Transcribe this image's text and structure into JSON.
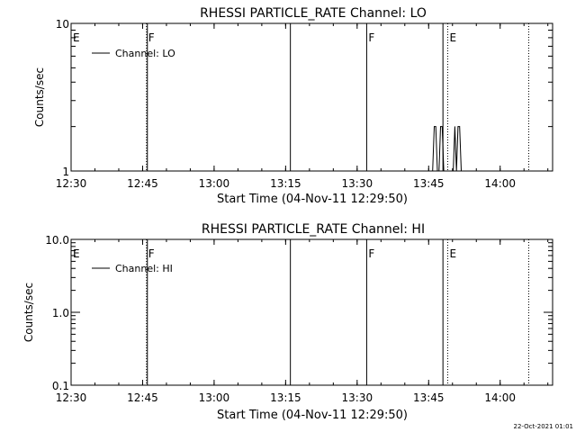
{
  "chart_data": [
    {
      "type": "line",
      "title": "RHESSI PARTICLE_RATE Channel: LO",
      "xlabel": "Start Time (04-Nov-11 12:29:50)",
      "ylabel": "Counts/sec",
      "yscale": "log",
      "ylim": [
        1,
        10
      ],
      "yticks": [
        "1",
        "10"
      ],
      "xlim": [
        "12:30",
        "14:11"
      ],
      "xticks": [
        "12:30",
        "12:45",
        "13:00",
        "13:15",
        "13:30",
        "13:45",
        "14:00"
      ],
      "grid": false,
      "legend_position": "top-left",
      "legend": "Channel: LO",
      "flags": [
        {
          "time": "12:30",
          "label": "E",
          "style": "solid"
        },
        {
          "time": "12:46",
          "label": "F",
          "style": "dotted"
        },
        {
          "time": "12:46",
          "label": "",
          "style": "solid"
        },
        {
          "time": "13:16",
          "label": "",
          "style": "solid"
        },
        {
          "time": "13:32",
          "label": "F",
          "style": "solid"
        },
        {
          "time": "13:48",
          "label": "",
          "style": "solid"
        },
        {
          "time": "13:49",
          "label": "E",
          "style": "dotted"
        },
        {
          "time": "14:06",
          "label": "",
          "style": "dotted"
        }
      ],
      "series": [
        {
          "name": "Channel: LO",
          "x": [
            "13:45:30",
            "13:45:50",
            "13:46:10",
            "13:46:30",
            "13:46:50",
            "13:47:10",
            "13:47:30",
            "13:47:50",
            "13:48:10",
            "13:48:30",
            "13:48:50",
            "13:49:10",
            "13:49:30",
            "13:49:50",
            "13:50:10",
            "13:50:30",
            "13:50:50",
            "13:51:10",
            "13:51:30",
            "13:51:50",
            "13:52:10"
          ],
          "values": [
            1,
            1,
            2,
            2,
            1,
            1,
            2,
            2,
            1,
            1,
            1,
            1,
            1,
            1,
            1,
            2,
            1,
            2,
            2,
            1,
            1
          ]
        }
      ]
    },
    {
      "type": "line",
      "title": "RHESSI PARTICLE_RATE Channel: HI",
      "xlabel": "Start Time (04-Nov-11 12:29:50)",
      "ylabel": "Counts/sec",
      "yscale": "log",
      "ylim": [
        0.1,
        10
      ],
      "yticks": [
        "0.1",
        "1.0",
        "10.0"
      ],
      "xlim": [
        "12:30",
        "14:11"
      ],
      "xticks": [
        "12:30",
        "12:45",
        "13:00",
        "13:15",
        "13:30",
        "13:45",
        "14:00"
      ],
      "grid": false,
      "legend_position": "top-left",
      "legend": "Channel: HI",
      "flags": [
        {
          "time": "12:30",
          "label": "E",
          "style": "solid"
        },
        {
          "time": "12:46",
          "label": "F",
          "style": "dotted"
        },
        {
          "time": "12:46",
          "label": "",
          "style": "solid"
        },
        {
          "time": "13:16",
          "label": "",
          "style": "solid"
        },
        {
          "time": "13:32",
          "label": "F",
          "style": "solid"
        },
        {
          "time": "13:48",
          "label": "",
          "style": "solid"
        },
        {
          "time": "13:49",
          "label": "E",
          "style": "dotted"
        },
        {
          "time": "14:06",
          "label": "",
          "style": "dotted"
        }
      ],
      "series": [
        {
          "name": "Channel: HI",
          "x": [],
          "values": []
        }
      ]
    }
  ],
  "footer": {
    "timestamp": "22-Oct-2021 01:01"
  },
  "colors": {
    "line": "#000000",
    "background": "#ffffff"
  }
}
